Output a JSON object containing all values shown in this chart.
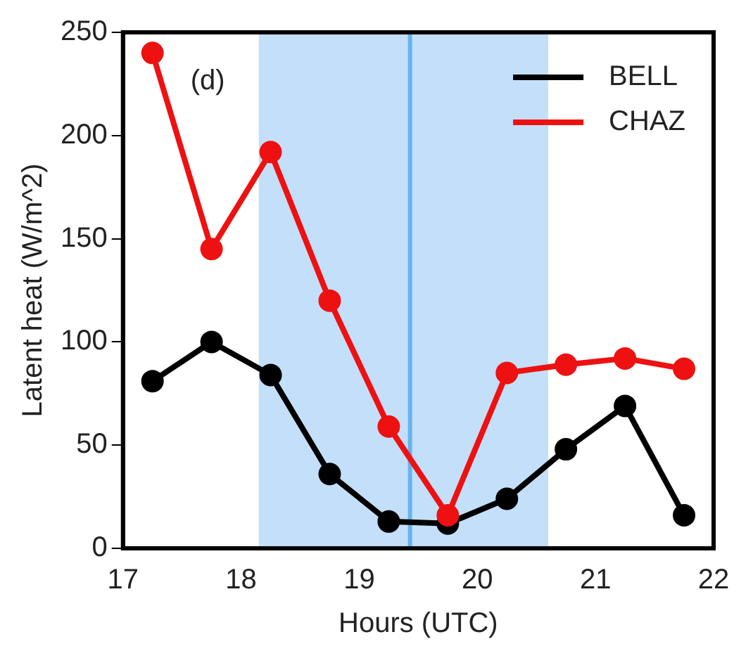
{
  "chart_data": {
    "type": "line",
    "xlabel": "Hours (UTC)",
    "ylabel": "Latent heat (W/m^2)",
    "annotations": [
      "(d)"
    ],
    "x": [
      17.25,
      17.75,
      18.25,
      18.75,
      19.25,
      19.75,
      20.25,
      20.75,
      21.25,
      21.75
    ],
    "series": [
      {
        "name": "BELL",
        "color": "#000000",
        "values": [
          81,
          100,
          84,
          36,
          13,
          12,
          24,
          48,
          69,
          16
        ]
      },
      {
        "name": "CHAZ",
        "color": "#ee1111",
        "values": [
          240,
          145,
          192,
          120,
          59,
          16,
          85,
          89,
          92,
          87
        ]
      }
    ],
    "xlim": [
      17,
      22
    ],
    "xticks": [
      17,
      18,
      19,
      20,
      21,
      22
    ],
    "ylim": [
      0,
      250
    ],
    "yticks": [
      0,
      50,
      100,
      150,
      200,
      250
    ],
    "bands": [
      {
        "axis": "x",
        "from": 18.15,
        "to": 20.6,
        "color": "#c4dffa"
      }
    ],
    "ref_lines": [
      {
        "axis": "x",
        "value": 19.43,
        "color": "#66b3ee"
      }
    ],
    "grid": false,
    "legend": "top right",
    "marker": "circle",
    "line_style": "solid"
  }
}
